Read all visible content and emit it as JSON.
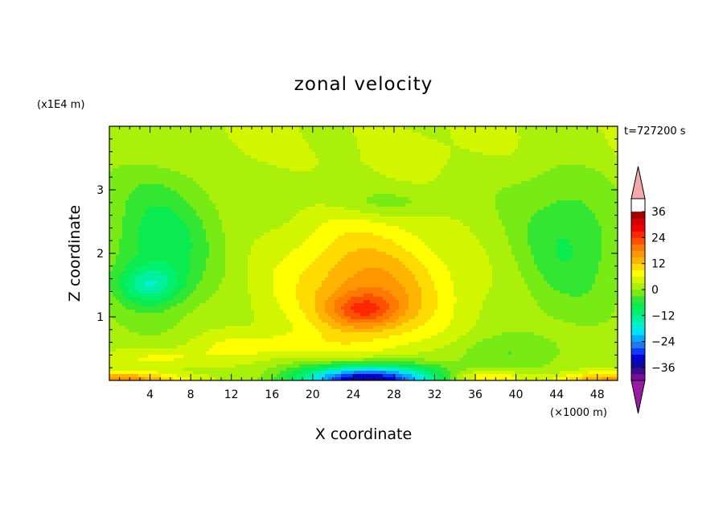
{
  "chart_data": {
    "type": "heatmap",
    "title": "zonal velocity",
    "xlabel": "X coordinate",
    "ylabel": "Z coordinate",
    "x_unit": "(×1000 m)",
    "y_unit": "(x1E4 m)",
    "time_label": "t=727200 s",
    "xlim": [
      0,
      50
    ],
    "ylim": [
      0,
      4
    ],
    "x_ticks": [
      4,
      8,
      12,
      16,
      20,
      24,
      28,
      32,
      36,
      40,
      44,
      48
    ],
    "y_ticks": [
      1,
      2,
      3
    ],
    "x_tick_labels": [
      "4",
      "8",
      "12",
      "16",
      "20",
      "24",
      "28",
      "32",
      "36",
      "40",
      "44",
      "48"
    ],
    "y_tick_labels": [
      "1",
      "2",
      "3"
    ],
    "contour_levels": [
      -42,
      -39,
      -36,
      -33,
      -30,
      -27,
      -24,
      -21,
      -18,
      -15,
      -12,
      -9,
      -6,
      -3,
      0,
      3,
      6,
      9,
      12,
      15,
      18,
      21,
      24,
      27,
      30,
      33,
      36,
      39,
      42
    ],
    "colorbar_tick_values": [
      36,
      24,
      12,
      0,
      -12,
      -24,
      -36
    ],
    "colorbar_tick_labels": [
      "36",
      "24",
      "12",
      "0",
      "−12",
      "−24",
      "−36"
    ],
    "colors": {
      "over": "#f4a8a8",
      "under": "#9a1aa8",
      "bins": [
        "#7a0d96",
        "#3d0c8e",
        "#0a0aa0",
        "#0000d8",
        "#0a3cff",
        "#1e78f0",
        "#00aaff",
        "#00e0ff",
        "#00f0d0",
        "#00f0a0",
        "#00f070",
        "#0aeb50",
        "#32e632",
        "#78eb14",
        "#aaf00a",
        "#d2f500",
        "#ffff00",
        "#ffdc00",
        "#ffb400",
        "#ff9600",
        "#ff7800",
        "#ff5000",
        "#ff2800",
        "#f00000",
        "#d20000",
        "#a50000"
      ]
    },
    "field_features": [
      {
        "name": "upper-green-layer",
        "x": 25,
        "z": 3.7,
        "value": 3
      },
      {
        "name": "jet-core",
        "x": 25,
        "z": 1.1,
        "value": 26
      },
      {
        "name": "jet-outer",
        "x": 26,
        "z": 1.4,
        "value": 15
      },
      {
        "name": "left-negative-patch",
        "x": 4,
        "z": 1.5,
        "value": -17
      },
      {
        "name": "left-cyan-region",
        "x": 5,
        "z": 2.2,
        "value": -10
      },
      {
        "name": "right-cyan-region",
        "x": 45,
        "z": 2.2,
        "value": -8
      },
      {
        "name": "surface-negative-core",
        "x": 25.5,
        "z": 0.05,
        "value": -40
      },
      {
        "name": "surface-positive-left",
        "x": 2,
        "z": 0.05,
        "value": 17
      },
      {
        "name": "surface-positive-right",
        "x": 47,
        "z": 0.05,
        "value": 14
      }
    ]
  }
}
